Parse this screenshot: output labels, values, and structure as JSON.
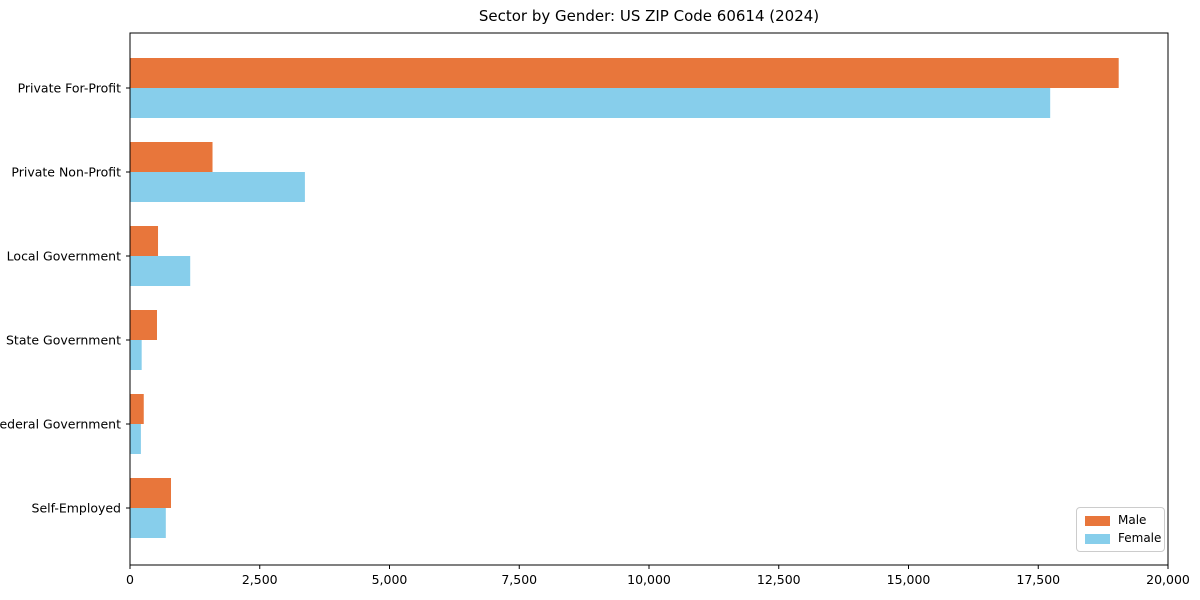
{
  "chart_data": {
    "type": "bar",
    "orientation": "horizontal",
    "title": "Sector by Gender: US ZIP Code 60614 (2024)",
    "categories": [
      "Private For-Profit",
      "Private Non-Profit",
      "Local Government",
      "State Government",
      "Federal Government",
      "Self-Employed"
    ],
    "series": [
      {
        "name": "Male",
        "color": "#E8763B",
        "values": [
          19050,
          1590,
          540,
          520,
          265,
          790
        ]
      },
      {
        "name": "Female",
        "color": "#87CEEB",
        "values": [
          17730,
          3370,
          1160,
          225,
          210,
          690
        ]
      }
    ],
    "xlabel": "",
    "ylabel": "",
    "xlim": [
      0,
      20000
    ],
    "xticks": [
      0,
      2500,
      5000,
      7500,
      10000,
      12500,
      15000,
      17500,
      20000
    ],
    "xtick_labels": [
      "0",
      "2,500",
      "5,000",
      "7,500",
      "10,000",
      "12,500",
      "15,000",
      "17,500",
      "20,000"
    ],
    "grid": false,
    "legend": {
      "position": "lower right",
      "entries": [
        "Male",
        "Female"
      ]
    },
    "axis_color": "#000000",
    "text_color": "#000000"
  }
}
